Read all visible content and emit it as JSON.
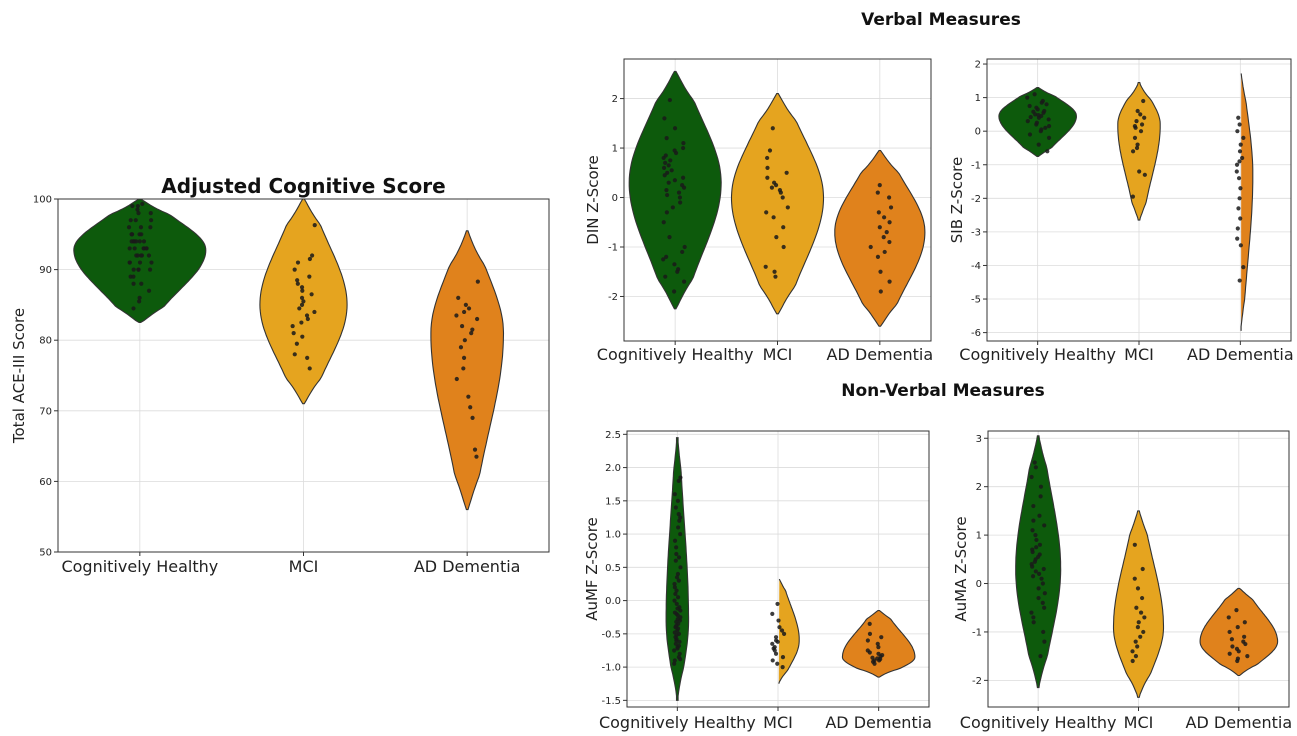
{
  "headings": {
    "verbal": "Verbal Measures",
    "nonverbal": "Non-Verbal Measures"
  },
  "colors": {
    "healthy": "#0d5a0c",
    "mci": "#e5a41f",
    "dementia": "#e0821c",
    "points": "#1a1a1a",
    "grid": "#dcdcdc"
  },
  "chart_data": [
    {
      "id": "ace",
      "type": "violin",
      "title": "Adjusted Cognitive Score",
      "ylabel": "Total ACE-III Score",
      "categories": [
        "Cognitively Healthy",
        "MCI",
        "AD Dementia"
      ],
      "ylim": [
        50,
        100
      ],
      "yticks": [
        50,
        60,
        70,
        80,
        90,
        100
      ],
      "grid": true,
      "series": [
        {
          "range": [
            82.5,
            100
          ],
          "median": 92.8,
          "points": [
            86,
            88,
            89,
            90,
            90,
            91,
            91,
            92,
            92,
            92,
            93,
            93,
            93,
            93,
            94,
            94,
            94,
            94,
            95,
            95,
            95,
            96,
            96,
            97,
            97,
            98,
            98,
            99,
            99,
            92,
            93,
            94,
            95,
            91,
            90,
            89,
            96,
            97,
            95,
            93,
            92,
            94,
            91,
            90,
            88,
            87,
            85.5,
            84.5,
            99.3,
            98.5
          ]
        },
        {
          "range": [
            71,
            100
          ],
          "median": 85,
          "points": [
            76,
            77.5,
            78,
            79.5,
            80.5,
            81,
            82,
            82.5,
            83,
            83.5,
            84,
            84.5,
            85,
            85.5,
            86,
            86.5,
            87,
            87.5,
            88,
            88.5,
            89,
            90,
            91,
            91.5,
            92,
            96.3
          ]
        },
        {
          "range": [
            56,
            95.5
          ],
          "median": 81,
          "points": [
            63.5,
            64.5,
            69,
            70.5,
            72,
            74.5,
            76,
            77.5,
            79,
            80,
            81,
            81.5,
            82,
            83,
            83.5,
            84,
            84.5,
            85,
            86,
            88.3
          ]
        }
      ]
    },
    {
      "id": "din",
      "type": "violin",
      "ylabel": "DIN Z-Score",
      "categories": [
        "Cognitively Healthy",
        "MCI",
        "AD Dementia"
      ],
      "ylim": [
        -2.9,
        2.8
      ],
      "yticks": [
        -2,
        -1,
        0,
        1,
        2
      ],
      "grid": true,
      "series": [
        {
          "range": [
            -2.25,
            2.55
          ],
          "median": 0.3,
          "points": [
            -1.9,
            -1.7,
            -1.5,
            -1.35,
            -1.2,
            -1.1,
            -1.0,
            -0.8,
            -0.5,
            -0.3,
            -0.1,
            0.0,
            0.1,
            0.2,
            0.3,
            0.4,
            0.5,
            0.6,
            0.7,
            0.8,
            0.9,
            1.0,
            1.1,
            1.2,
            1.4,
            1.6,
            1.97,
            0.35,
            0.45,
            0.55,
            0.65,
            0.75,
            0.25,
            0.15,
            0.05,
            -1.25,
            -1.45,
            -1.6,
            -0.2,
            0.85,
            0.95
          ]
        },
        {
          "range": [
            -2.35,
            2.1
          ],
          "median": 0.0,
          "points": [
            -1.6,
            -1.4,
            -1.0,
            -0.8,
            -0.6,
            -0.4,
            -0.2,
            0.0,
            0.1,
            0.2,
            0.3,
            0.4,
            0.5,
            0.6,
            0.8,
            0.95,
            1.4,
            -0.3,
            0.15,
            0.25,
            -1.5
          ]
        },
        {
          "range": [
            -2.6,
            0.95
          ],
          "median": -0.7,
          "points": [
            -1.9,
            -1.7,
            -1.5,
            -1.2,
            -1.0,
            -0.9,
            -0.8,
            -0.6,
            -0.5,
            -0.4,
            -0.3,
            -0.2,
            0.0,
            0.1,
            0.25,
            -1.1,
            -0.7
          ]
        }
      ]
    },
    {
      "id": "sib",
      "type": "violin",
      "ylabel": "SIB Z-Score",
      "categories": [
        "Cognitively Healthy",
        "MCI",
        "AD Dementia"
      ],
      "ylim": [
        -6.25,
        2.15
      ],
      "yticks": [
        -6,
        -5,
        -4,
        -3,
        -2,
        -1,
        0,
        1,
        2
      ],
      "grid": true,
      "series": [
        {
          "range": [
            -0.75,
            1.3
          ],
          "median": 0.45,
          "points": [
            -0.6,
            -0.4,
            -0.2,
            0.0,
            0.1,
            0.2,
            0.3,
            0.35,
            0.4,
            0.45,
            0.5,
            0.55,
            0.6,
            0.65,
            0.7,
            0.8,
            0.9,
            1.0,
            1.1,
            0.25,
            0.15,
            0.05,
            0.75,
            0.85,
            -0.1,
            0.42,
            0.48,
            0.58
          ]
        },
        {
          "range": [
            -2.65,
            1.45
          ],
          "median": 0.2,
          "points": [
            -1.95,
            -1.3,
            -1.2,
            -0.6,
            -0.4,
            -0.2,
            0.0,
            0.1,
            0.2,
            0.3,
            0.4,
            0.5,
            0.6,
            0.9,
            0.15,
            -0.5
          ]
        },
        {
          "range": [
            -5.95,
            1.85
          ],
          "median": -1.3,
          "points": [
            -4.45,
            -4.05,
            -3.4,
            -3.2,
            -2.9,
            -2.6,
            -2.3,
            -2.0,
            -1.7,
            -1.4,
            -1.2,
            -1.0,
            -0.8,
            -0.6,
            -0.4,
            -0.2,
            0.0,
            0.2,
            0.4,
            -0.9
          ]
        }
      ]
    },
    {
      "id": "aumf",
      "type": "violin",
      "ylabel": "AuMF Z-Score",
      "categories": [
        "Cognitively Healthy",
        "MCI",
        "AD Dementia"
      ],
      "ylim": [
        -1.6,
        2.55
      ],
      "yticks": [
        -1.5,
        -1.0,
        -0.5,
        0.0,
        0.5,
        1.0,
        1.5,
        2.0,
        2.5
      ],
      "ytickfmt": 1,
      "grid": true,
      "series": [
        {
          "range": [
            -1.5,
            2.45
          ],
          "median": -0.3,
          "points": [
            -0.95,
            -0.9,
            -0.85,
            -0.8,
            -0.75,
            -0.7,
            -0.65,
            -0.6,
            -0.55,
            -0.5,
            -0.45,
            -0.4,
            -0.35,
            -0.3,
            -0.25,
            -0.2,
            -0.15,
            -0.1,
            -0.05,
            0.0,
            0.1,
            0.2,
            0.3,
            0.4,
            0.5,
            0.6,
            0.7,
            0.8,
            0.9,
            1.0,
            1.1,
            1.2,
            1.3,
            1.4,
            1.5,
            1.6,
            1.8,
            1.85,
            -0.42,
            -0.38,
            -0.32,
            -0.28,
            -0.22,
            -0.48,
            -0.58,
            -0.62,
            -0.68,
            -0.72,
            -0.12,
            0.05,
            0.15,
            0.25,
            -0.18,
            -0.52,
            -0.88,
            0.65,
            1.25,
            0.35
          ]
        },
        {
          "range": [
            -1.25,
            0.35
          ],
          "median": -0.6,
          "points": [
            -1.0,
            -0.95,
            -0.9,
            -0.85,
            -0.8,
            -0.75,
            -0.7,
            -0.65,
            -0.6,
            -0.55,
            -0.5,
            -0.45,
            -0.4,
            -0.3,
            -0.2,
            -0.05,
            -0.72,
            -0.62
          ]
        },
        {
          "range": [
            -1.15,
            -0.15
          ],
          "median": -0.85,
          "points": [
            -0.95,
            -0.92,
            -0.9,
            -0.88,
            -0.86,
            -0.84,
            -0.82,
            -0.8,
            -0.78,
            -0.75,
            -0.7,
            -0.65,
            -0.6,
            -0.55,
            -0.5,
            -0.35,
            -0.9,
            -0.87
          ]
        }
      ]
    },
    {
      "id": "auma",
      "type": "violin",
      "ylabel": "AuMA Z-Score",
      "categories": [
        "Cognitively Healthy",
        "MCI",
        "AD Dementia"
      ],
      "ylim": [
        -2.55,
        3.15
      ],
      "yticks": [
        -2,
        -1,
        0,
        1,
        2,
        3
      ],
      "grid": true,
      "series": [
        {
          "range": [
            -2.15,
            3.05
          ],
          "median": 0.3,
          "points": [
            -1.5,
            -1.2,
            -1.0,
            -0.8,
            -0.6,
            -0.4,
            -0.2,
            0.0,
            0.1,
            0.2,
            0.3,
            0.4,
            0.5,
            0.6,
            0.7,
            0.8,
            0.9,
            1.0,
            1.2,
            1.4,
            1.6,
            1.8,
            2.0,
            2.2,
            2.5,
            0.15,
            0.25,
            0.35,
            0.45,
            0.55,
            -0.1,
            -0.3,
            -0.5,
            0.65,
            0.75,
            1.1,
            -0.7,
            1.3,
            2.4
          ]
        },
        {
          "range": [
            -2.35,
            1.5
          ],
          "median": -0.9,
          "points": [
            -1.6,
            -1.5,
            -1.4,
            -1.3,
            -1.2,
            -1.0,
            -0.9,
            -0.8,
            -0.7,
            -0.6,
            -0.5,
            -0.3,
            -0.1,
            0.1,
            0.3,
            0.8,
            -1.1
          ]
        },
        {
          "range": [
            -1.9,
            -0.1
          ],
          "median": -1.2,
          "points": [
            -1.6,
            -1.55,
            -1.5,
            -1.45,
            -1.4,
            -1.35,
            -1.3,
            -1.25,
            -1.2,
            -1.15,
            -1.1,
            -1.0,
            -0.9,
            -0.8,
            -0.7,
            -0.55
          ]
        }
      ]
    }
  ]
}
